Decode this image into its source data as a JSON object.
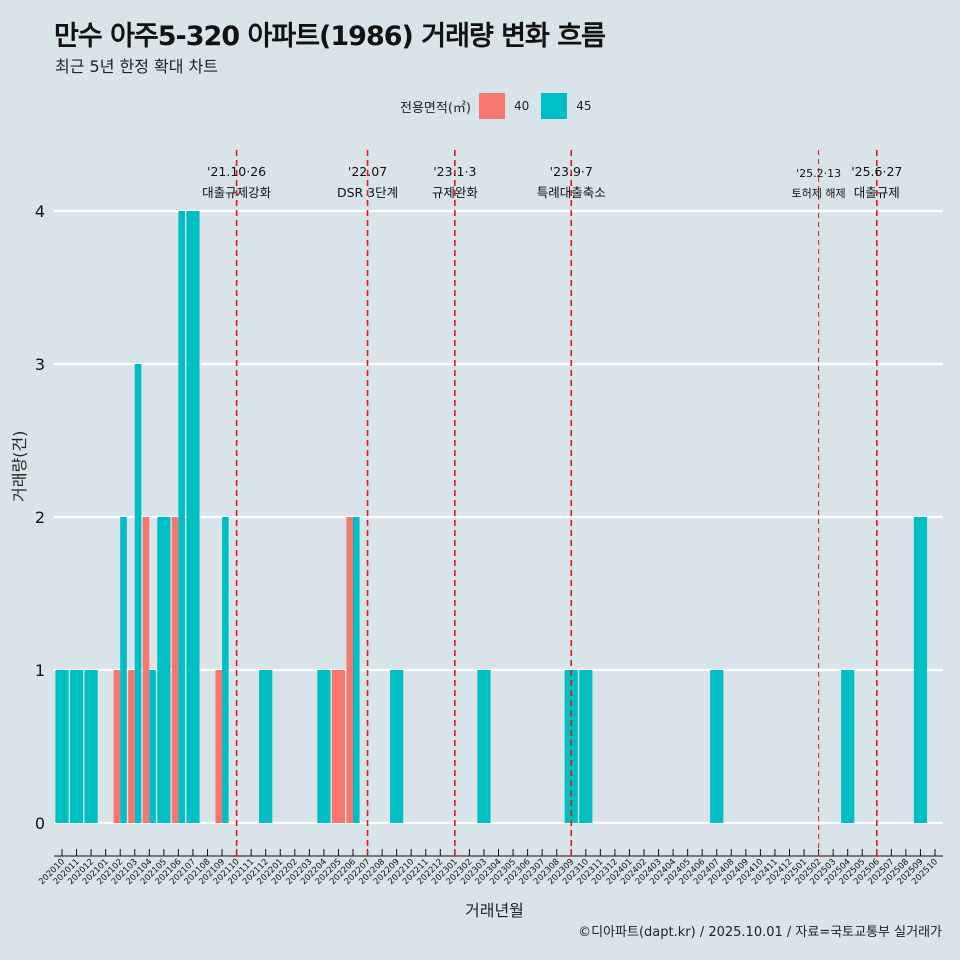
{
  "header": {
    "title": "만수 아주5-320 아파트(1986) 거래량 변화 흐름",
    "subtitle": "최근 5년 한정 확대 차트"
  },
  "legend": {
    "title": "전용면적(㎡)",
    "items": [
      {
        "label": "40",
        "color": "#F8766D"
      },
      {
        "label": "45",
        "color": "#00BFC4"
      }
    ]
  },
  "caption": "©디아파트(dapt.kr) / 2025.10.01 / 자료=국토교통부 실거래가",
  "chart_data": {
    "type": "bar",
    "title": "만수 아주5-320 아파트(1986) 거래량 변화 흐름",
    "subtitle": "최근 5년 한정 확대 차트",
    "xlabel": "거래년월",
    "ylabel": "거래량(건)",
    "ylim": [
      0,
      4
    ],
    "yticks": [
      0,
      1,
      2,
      3,
      4
    ],
    "grid": "horizontal",
    "legend_position": "top",
    "categories": [
      "202010",
      "202011",
      "202012",
      "202101",
      "202102",
      "202103",
      "202104",
      "202105",
      "202106",
      "202107",
      "202108",
      "202109",
      "202110",
      "202111",
      "202112",
      "202201",
      "202202",
      "202203",
      "202204",
      "202205",
      "202206",
      "202207",
      "202208",
      "202209",
      "202210",
      "202211",
      "202212",
      "202301",
      "202302",
      "202303",
      "202304",
      "202305",
      "202306",
      "202307",
      "202308",
      "202309",
      "202310",
      "202311",
      "202312",
      "202401",
      "202402",
      "202403",
      "202404",
      "202405",
      "202406",
      "202407",
      "202408",
      "202409",
      "202410",
      "202411",
      "202412",
      "202501",
      "202502",
      "202503",
      "202504",
      "202505",
      "202506",
      "202507",
      "202508",
      "202509",
      "202510"
    ],
    "series": [
      {
        "name": "40",
        "color": "#F8766D",
        "values": {
          "202102": 1,
          "202103": 1,
          "202104": 2,
          "202106": 2,
          "202109": 1,
          "202205": 1,
          "202206": 2
        }
      },
      {
        "name": "45",
        "color": "#00BFC4",
        "values": {
          "202010": 1,
          "202011": 1,
          "202012": 1,
          "202102": 2,
          "202103": 3,
          "202104": 1,
          "202105": 2,
          "202106": 4,
          "202107": 4,
          "202109": 2,
          "202112": 1,
          "202204": 1,
          "202206": 2,
          "202209": 1,
          "202303": 1,
          "202309": 1,
          "202310": 1,
          "202407": 1,
          "202504": 1,
          "202509": 2
        }
      }
    ],
    "annotations": [
      {
        "month": "202110",
        "date": "'21.10·26",
        "text": "대출규제강화",
        "style": "bold-dash"
      },
      {
        "month": "202207",
        "date": "'22.07",
        "text": "DSR 3단계",
        "style": "bold-dash"
      },
      {
        "month": "202301",
        "date": "'23.1·3",
        "text": "규제완화",
        "style": "bold-dash"
      },
      {
        "month": "202309",
        "date": "'23.9·7",
        "text": "특례대출축소",
        "style": "bold-dash"
      },
      {
        "month": "202502",
        "date": "'25.2·13",
        "text": "토허제 해제",
        "style": "thin-dash"
      },
      {
        "month": "202506",
        "date": "'25.6·27",
        "text": "대출규제",
        "style": "bold-dash"
      }
    ]
  }
}
